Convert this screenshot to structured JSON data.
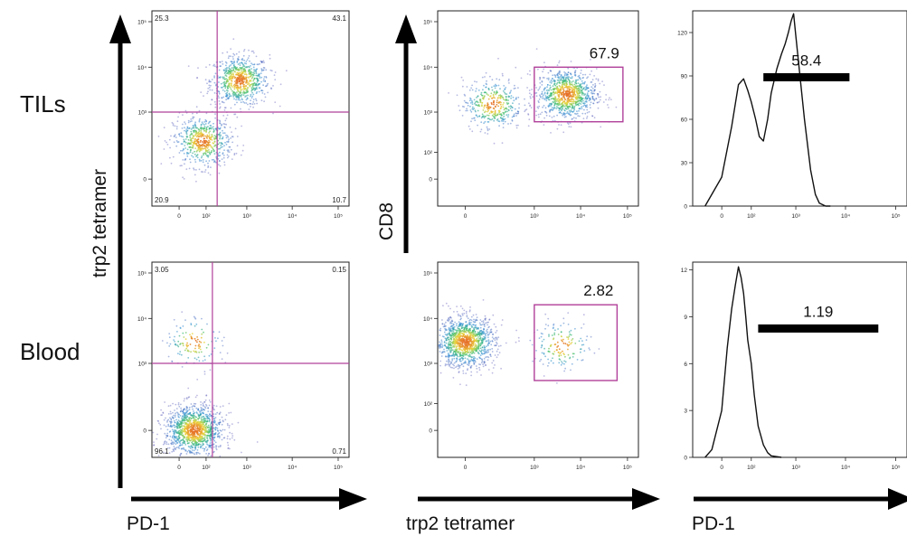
{
  "row_labels": {
    "tils": "TILs",
    "blood": "Blood"
  },
  "axes": {
    "big_y_left": "trp2 tetramer",
    "big_y_middle": "CD8",
    "big_x_left": "PD-1",
    "big_x_middle": "trp2 tetramer",
    "big_x_right": "PD-1"
  },
  "colors": {
    "gate": "#b0409a",
    "axis": "#000000"
  },
  "chart_data": [
    {
      "id": "tils-pd1-vs-tetramer",
      "type": "scatter",
      "xaxis": "biexponential",
      "yaxis": "biexponential",
      "x_ticks": [
        "0",
        "10²",
        "10³",
        "10⁴",
        "10⁵"
      ],
      "y_ticks": [
        "0",
        "10³",
        "10⁴",
        "10⁵"
      ],
      "quadrant_gate": {
        "x": 200,
        "y": 1000
      },
      "quadrants": {
        "top_left": "25.3",
        "top_right": "43.1",
        "bottom_left": "20.9",
        "bottom_right": "10.7"
      },
      "populations": [
        {
          "x_center": 700,
          "y_center": 5000,
          "weight": 0.55
        },
        {
          "x_center": 80,
          "y_center": 200,
          "weight": 0.45
        }
      ]
    },
    {
      "id": "tils-tetramer-vs-cd8",
      "type": "scatter",
      "xaxis": "biexponential",
      "yaxis": "biexponential",
      "x_ticks": [
        "0",
        "10³",
        "10⁴",
        "10⁵"
      ],
      "y_ticks": [
        "0",
        "10²",
        "10³",
        "10⁴",
        "10⁵"
      ],
      "gate": {
        "label": "67.9",
        "x_range": [
          1000,
          80000
        ],
        "y_range": [
          600,
          10000
        ]
      },
      "populations": [
        {
          "x_center": 5000,
          "y_center": 2500,
          "weight": 0.7
        },
        {
          "x_center": 100,
          "y_center": 1500,
          "weight": 0.3
        }
      ]
    },
    {
      "id": "tils-pd1-histogram",
      "type": "line",
      "xaxis": "biexponential",
      "x_ticks": [
        "0",
        "10²",
        "10³",
        "10⁴",
        "10⁵"
      ],
      "y_ticks": [
        "0",
        "30",
        "60",
        "90",
        "120"
      ],
      "ylim": [
        0,
        135
      ],
      "gate": {
        "label": "58.4",
        "x_range": [
          200,
          12000
        ]
      },
      "x": [
        -40,
        0,
        20,
        40,
        60,
        80,
        100,
        130,
        160,
        200,
        250,
        300,
        400,
        500,
        600,
        700,
        800,
        900,
        1000,
        1200,
        1500,
        2000,
        2500,
        3000,
        4000,
        5000
      ],
      "y": [
        0,
        20,
        55,
        84,
        88,
        80,
        72,
        60,
        48,
        45,
        60,
        78,
        95,
        105,
        112,
        120,
        128,
        133,
        118,
        92,
        60,
        25,
        8,
        2,
        0,
        0
      ]
    },
    {
      "id": "blood-pd1-vs-tetramer",
      "type": "scatter",
      "xaxis": "biexponential",
      "yaxis": "biexponential",
      "x_ticks": [
        "0",
        "10²",
        "10³",
        "10⁴",
        "10⁵"
      ],
      "y_ticks": [
        "0",
        "10³",
        "10⁴",
        "10⁵"
      ],
      "quadrant_gate": {
        "x": 150,
        "y": 1000
      },
      "quadrants": {
        "top_left": "3.05",
        "top_right": "0.15",
        "bottom_left": "96.1",
        "bottom_right": "0.71"
      },
      "populations": [
        {
          "x_center": 40,
          "y_center": 0,
          "weight": 0.9
        },
        {
          "x_center": 40,
          "y_center": 3000,
          "weight": 0.1
        }
      ]
    },
    {
      "id": "blood-tetramer-vs-cd8",
      "type": "scatter",
      "xaxis": "biexponential",
      "yaxis": "biexponential",
      "x_ticks": [
        "0",
        "10³",
        "10⁴",
        "10⁵"
      ],
      "y_ticks": [
        "0",
        "10²",
        "10³",
        "10⁴",
        "10⁵"
      ],
      "gate": {
        "label": "2.82",
        "x_range": [
          1000,
          60000
        ],
        "y_range": [
          400,
          20000
        ]
      },
      "populations": [
        {
          "x_center": 0,
          "y_center": 3000,
          "weight": 0.88
        },
        {
          "x_center": 4000,
          "y_center": 2500,
          "weight": 0.12
        }
      ]
    },
    {
      "id": "blood-pd1-histogram",
      "type": "line",
      "xaxis": "biexponential",
      "x_ticks": [
        "0",
        "10²",
        "10³",
        "10⁴",
        "10⁵"
      ],
      "y_ticks": [
        "0",
        "3",
        "6",
        "9",
        "12"
      ],
      "ylim": [
        0,
        12.5
      ],
      "gate": {
        "label": "1.19",
        "x_range": [
          150,
          45000
        ]
      },
      "x": [
        -40,
        -20,
        0,
        10,
        20,
        30,
        40,
        50,
        60,
        70,
        80,
        100,
        120,
        150,
        200,
        250,
        300,
        500
      ],
      "y": [
        0,
        0.5,
        3,
        7,
        9.5,
        11,
        12.2,
        11.5,
        10.5,
        9,
        7.5,
        6,
        4,
        2,
        0.8,
        0.3,
        0.1,
        0
      ]
    }
  ]
}
